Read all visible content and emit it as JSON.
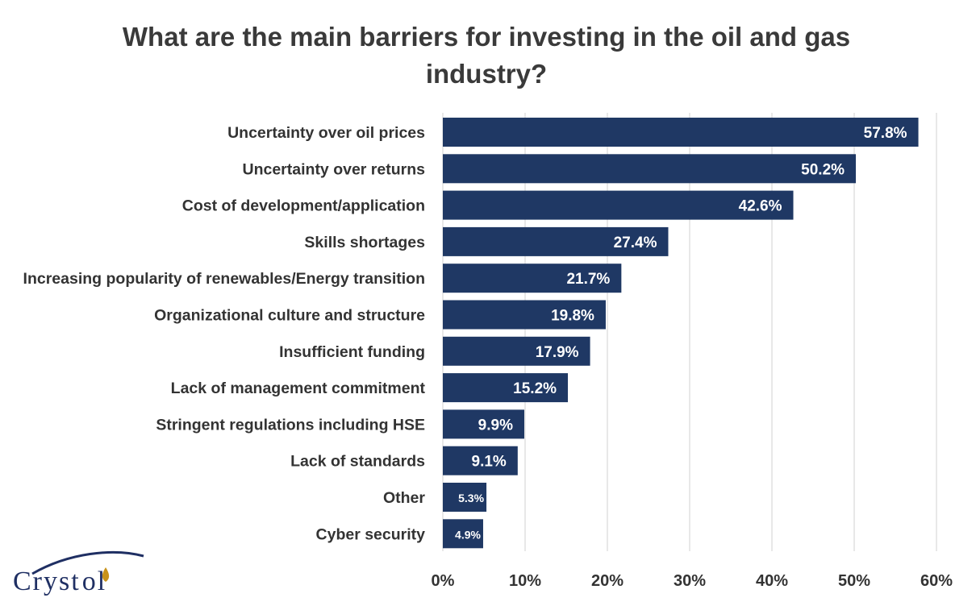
{
  "chart_data": {
    "type": "bar",
    "orientation": "horizontal",
    "title": "What are the main barriers for investing in the oil and gas industry?",
    "title_lines": [
      "What are the main barriers for investing in the oil and gas",
      "industry?"
    ],
    "categories": [
      "Uncertainty over oil prices",
      "Uncertainty over returns",
      "Cost of development/application",
      "Skills shortages",
      "Increasing popularity of renewables/Energy transition",
      "Organizational culture and structure",
      "Insufficient funding",
      "Lack of management commitment",
      "Stringent regulations including HSE",
      "Lack of standards",
      "Other",
      "Cyber security"
    ],
    "values": [
      57.8,
      50.2,
      42.6,
      27.4,
      21.7,
      19.8,
      17.9,
      15.2,
      9.9,
      9.1,
      5.3,
      4.9
    ],
    "data_labels": [
      "57.8%",
      "50.2%",
      "42.6%",
      "27.4%",
      "21.7%",
      "19.8%",
      "17.9%",
      "15.2%",
      "9.9%",
      "9.1%",
      "5.3%",
      "4.9%"
    ],
    "xlim": [
      0,
      60
    ],
    "x_ticks": [
      0,
      10,
      20,
      30,
      40,
      50,
      60
    ],
    "x_tick_labels": [
      "0%",
      "10%",
      "20%",
      "30%",
      "40%",
      "50%",
      "60%"
    ],
    "grid": true,
    "bar_color": "#1f3864",
    "gridline_color": "#d9d9d9"
  },
  "logo": {
    "text": "Cryst",
    "text_end": "l",
    "primary_color": "#1f2f63",
    "accent_color": "#c8921a"
  }
}
